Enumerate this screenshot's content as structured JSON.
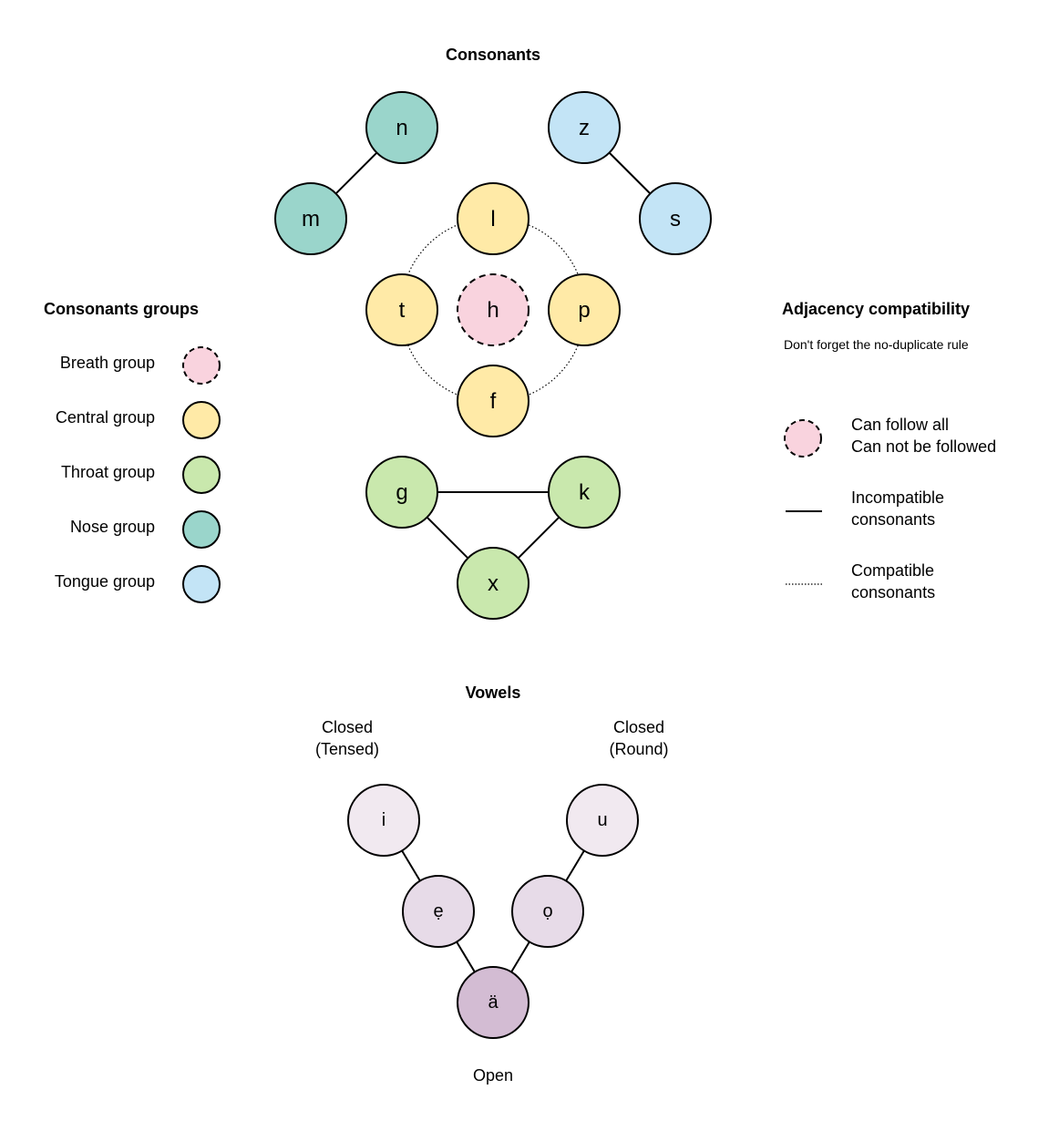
{
  "consonants_title": "Consonants",
  "vowels_title": "Vowels",
  "colors": {
    "breath": "#f9d3de",
    "central": "#ffeaa7",
    "throat": "#c9e8ad",
    "nose": "#9ad5cb",
    "tongue": "#c3e4f6",
    "vowel_closed": "#f1e9f0",
    "vowel_mid": "#e7dbe8",
    "vowel_open": "#d3bcd3"
  },
  "groups_legend": {
    "title": "Consonants groups",
    "items": [
      {
        "label": "Breath group",
        "group": "breath",
        "dashed": true
      },
      {
        "label": "Central group",
        "group": "central"
      },
      {
        "label": "Throat group",
        "group": "throat"
      },
      {
        "label": "Nose group",
        "group": "nose"
      },
      {
        "label": "Tongue group",
        "group": "tongue"
      }
    ]
  },
  "adjacency_legend": {
    "title": "Adjacency compatibility",
    "note": "Don't forget the no-duplicate rule",
    "items": [
      {
        "kind": "dashed-circle",
        "lines": [
          "Can follow all",
          "Can not be followed"
        ]
      },
      {
        "kind": "solid-line",
        "lines": [
          "Incompatible",
          "consonants"
        ]
      },
      {
        "kind": "dotted-line",
        "lines": [
          "Compatible",
          "consonants"
        ]
      }
    ]
  },
  "consonants": [
    {
      "id": "n",
      "label": "n",
      "group": "nose"
    },
    {
      "id": "m",
      "label": "m",
      "group": "nose"
    },
    {
      "id": "z",
      "label": "z",
      "group": "tongue"
    },
    {
      "id": "s",
      "label": "s",
      "group": "tongue"
    },
    {
      "id": "l",
      "label": "l",
      "group": "central"
    },
    {
      "id": "t",
      "label": "t",
      "group": "central"
    },
    {
      "id": "h",
      "label": "h",
      "group": "breath",
      "dashed": true
    },
    {
      "id": "p",
      "label": "p",
      "group": "central"
    },
    {
      "id": "f",
      "label": "f",
      "group": "central"
    },
    {
      "id": "g",
      "label": "g",
      "group": "throat"
    },
    {
      "id": "k",
      "label": "k",
      "group": "throat"
    },
    {
      "id": "x",
      "label": "x",
      "group": "throat"
    }
  ],
  "consonant_edges": {
    "incompatible": [
      [
        "m",
        "n"
      ],
      [
        "z",
        "s"
      ],
      [
        "g",
        "k"
      ],
      [
        "g",
        "x"
      ],
      [
        "k",
        "x"
      ]
    ],
    "compatible": [
      [
        "l",
        "p"
      ],
      [
        "p",
        "f"
      ],
      [
        "f",
        "t"
      ],
      [
        "t",
        "l"
      ]
    ]
  },
  "vowels": [
    {
      "id": "i",
      "label": "i",
      "shade": "vowel_closed"
    },
    {
      "id": "u",
      "label": "u",
      "shade": "vowel_closed"
    },
    {
      "id": "e",
      "label": "ẹ",
      "shade": "vowel_mid"
    },
    {
      "id": "o",
      "label": "ọ",
      "shade": "vowel_mid"
    },
    {
      "id": "a",
      "label": "ä",
      "shade": "vowel_open"
    }
  ],
  "vowel_edges": [
    [
      "i",
      "e"
    ],
    [
      "e",
      "a"
    ],
    [
      "u",
      "o"
    ],
    [
      "o",
      "a"
    ]
  ],
  "vowel_labels": {
    "left": [
      "Closed",
      "(Tensed)"
    ],
    "right": [
      "Closed",
      "(Round)"
    ],
    "bottom": "Open"
  }
}
